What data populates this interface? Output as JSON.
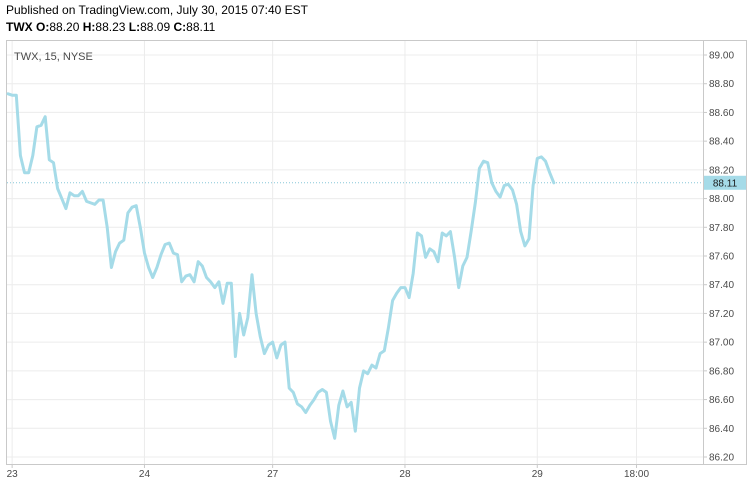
{
  "header": {
    "published": "Published on TradingView.com, July 30, 2015 07:40 EST",
    "symbol": "TWX",
    "open_label": "O:",
    "open": "88.20",
    "high_label": "H:",
    "high": "88.23",
    "low_label": "L:",
    "low": "88.09",
    "close_label": "C:",
    "close": "88.11"
  },
  "chart_data": {
    "type": "line",
    "title": "TWX, 15, NYSE",
    "xlabel": "",
    "ylabel": "",
    "ylim": [
      86.2,
      89.0
    ],
    "y_ticks": [
      "89.00",
      "88.80",
      "88.60",
      "88.40",
      "88.20",
      "88.00",
      "87.80",
      "87.60",
      "87.40",
      "87.20",
      "87.00",
      "86.80",
      "86.60",
      "86.40",
      "86.20"
    ],
    "x_tick_labels": [
      "23",
      "24",
      "27",
      "28",
      "29",
      "18:00"
    ],
    "x_tick_index": [
      1,
      33,
      64,
      96,
      128,
      152
    ],
    "last_price": "88.11",
    "grid": true,
    "line_color": "#a5dbe8",
    "series": [
      {
        "values": [
          88.73,
          88.72,
          88.72,
          88.3,
          88.18,
          88.18,
          88.3,
          88.5,
          88.51,
          88.57,
          88.27,
          88.25,
          88.07,
          88.0,
          87.93,
          88.04,
          88.02,
          88.02,
          88.05,
          87.98,
          87.97,
          87.96,
          87.99,
          87.99,
          87.8,
          87.52,
          87.63,
          87.69,
          87.71,
          87.9,
          87.94,
          87.95,
          87.8,
          87.62,
          87.52,
          87.45,
          87.52,
          87.61,
          87.68,
          87.69,
          87.62,
          87.61,
          87.42,
          87.46,
          87.47,
          87.42,
          87.56,
          87.53,
          87.45,
          87.42,
          87.38,
          87.42,
          87.27,
          87.41,
          87.41,
          86.9,
          87.2,
          87.05,
          87.17,
          87.47,
          87.2,
          87.04,
          86.92,
          86.98,
          87.0,
          86.89,
          86.98,
          87.0,
          86.68,
          86.65,
          86.57,
          86.55,
          86.51,
          86.56,
          86.6,
          86.65,
          86.67,
          86.65,
          86.45,
          86.33,
          86.56,
          86.66,
          86.55,
          86.58,
          86.38,
          86.68,
          86.8,
          86.78,
          86.84,
          86.82,
          86.92,
          86.94,
          87.1,
          87.29,
          87.34,
          87.38,
          87.38,
          87.31,
          87.48,
          87.76,
          87.74,
          87.59,
          87.65,
          87.63,
          87.56,
          87.76,
          87.74,
          87.77,
          87.59,
          87.38,
          87.53,
          87.59,
          87.77,
          87.97,
          88.21,
          88.26,
          88.25,
          88.11,
          88.05,
          88.01,
          88.09,
          88.1,
          88.06,
          87.96,
          87.77,
          87.67,
          87.72,
          88.09,
          88.28,
          88.29,
          88.26,
          88.18,
          88.11
        ]
      }
    ]
  }
}
